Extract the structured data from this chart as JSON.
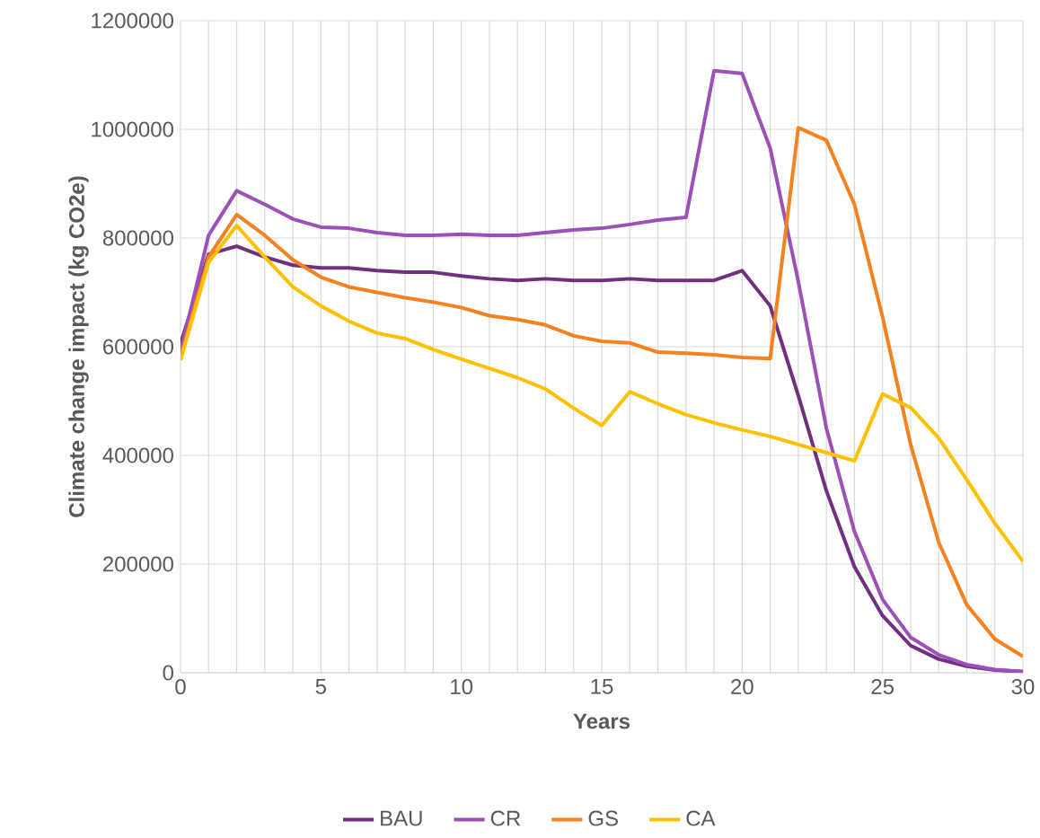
{
  "chart_data": {
    "type": "line",
    "xlabel": "Years",
    "ylabel": "Climate change impact (kg CO2e)",
    "x": [
      0,
      1,
      2,
      3,
      4,
      5,
      6,
      7,
      8,
      9,
      10,
      11,
      12,
      13,
      14,
      15,
      16,
      17,
      18,
      19,
      20,
      21,
      22,
      23,
      24,
      25,
      26,
      27,
      28,
      29,
      30
    ],
    "series": [
      {
        "name": "BAU",
        "color": "#70307f",
        "values": [
          605000,
          770000,
          785000,
          765000,
          750000,
          745000,
          745000,
          740000,
          737000,
          737000,
          730000,
          725000,
          722000,
          725000,
          722000,
          722000,
          725000,
          722000,
          722000,
          722000,
          740000,
          675000,
          510000,
          335000,
          195000,
          105000,
          50000,
          25000,
          12000,
          5000,
          2000
        ]
      },
      {
        "name": "CR",
        "color": "#9b51b8",
        "values": [
          590000,
          805000,
          887000,
          862000,
          835000,
          820000,
          818000,
          810000,
          805000,
          805000,
          807000,
          805000,
          805000,
          810000,
          815000,
          818000,
          825000,
          833000,
          838000,
          1108000,
          1103000,
          965000,
          720000,
          450000,
          260000,
          135000,
          65000,
          33000,
          15000,
          6000,
          2000
        ]
      },
      {
        "name": "GS",
        "color": "#f58220",
        "values": [
          580000,
          765000,
          843000,
          805000,
          760000,
          728000,
          710000,
          700000,
          690000,
          682000,
          672000,
          657000,
          650000,
          640000,
          620000,
          610000,
          607000,
          590000,
          588000,
          585000,
          580000,
          578000,
          1003000,
          980000,
          862000,
          655000,
          420000,
          240000,
          125000,
          62000,
          30000
        ]
      },
      {
        "name": "CA",
        "color": "#ffc000",
        "values": [
          575000,
          755000,
          823000,
          765000,
          710000,
          675000,
          647000,
          625000,
          615000,
          595000,
          577000,
          560000,
          543000,
          522000,
          487000,
          455000,
          517000,
          495000,
          475000,
          460000,
          447000,
          435000,
          420000,
          405000,
          390000,
          513000,
          488000,
          432000,
          355000,
          275000,
          205000
        ]
      }
    ],
    "xlim": [
      0,
      30
    ],
    "xticks": [
      0,
      5,
      10,
      15,
      20,
      25,
      30
    ],
    "ylim": [
      0,
      1200000
    ],
    "yticks": [
      0,
      200000,
      400000,
      600000,
      800000,
      1000000,
      1200000
    ],
    "grid": true,
    "legend": "bottom",
    "line_style": "solid",
    "marker": "none"
  }
}
